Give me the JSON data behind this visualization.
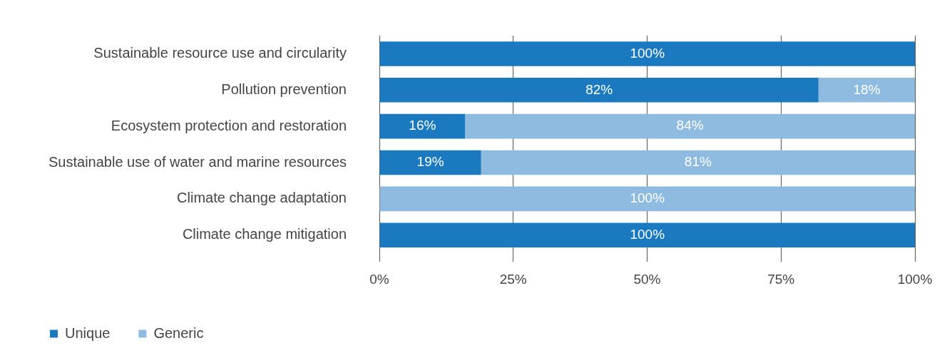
{
  "chart_data": {
    "type": "bar",
    "orientation": "horizontal",
    "stacked": true,
    "categories": [
      "Sustainable resource use and circularity",
      "Pollution prevention",
      "Ecosystem protection and restoration",
      "Sustainable use of water and marine resources",
      "Climate change adaptation",
      "Climate change mitigation"
    ],
    "series": [
      {
        "name": "Unique",
        "color": "#1b7abf",
        "values": [
          100,
          82,
          16,
          19,
          0,
          100
        ],
        "value_labels": [
          "100%",
          "82%",
          "16%",
          "19%",
          null,
          "100%"
        ]
      },
      {
        "name": "Generic",
        "color": "#8fbbe0",
        "values": [
          0,
          18,
          84,
          81,
          100,
          0
        ],
        "value_labels": [
          null,
          "18%",
          "84%",
          "81%",
          "100%",
          null
        ]
      }
    ],
    "xlim": [
      0,
      100
    ],
    "xticks": [
      {
        "value": 0,
        "label": "0%"
      },
      {
        "value": 25,
        "label": "25%"
      },
      {
        "value": 50,
        "label": "50%"
      },
      {
        "value": 75,
        "label": "75%"
      },
      {
        "value": 100,
        "label": "100%"
      }
    ],
    "grid": "x",
    "legend": "bottom left"
  }
}
